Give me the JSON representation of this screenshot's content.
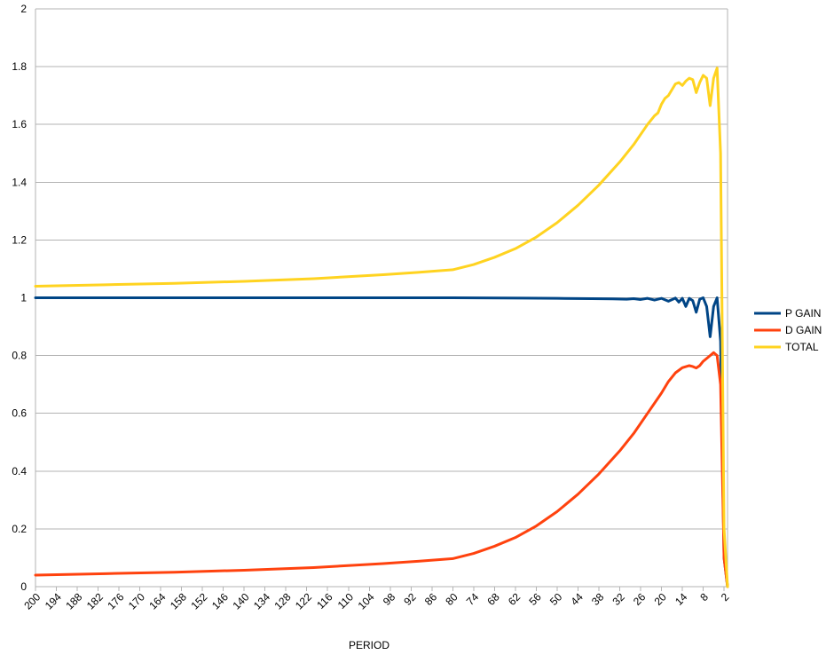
{
  "chart_data": {
    "type": "line",
    "title": "",
    "xlabel": "PERIOD",
    "ylabel": "",
    "ylim": [
      0,
      2
    ],
    "yticks": [
      0,
      0.2,
      0.4,
      0.6,
      0.8,
      1,
      1.2,
      1.4,
      1.6,
      1.8,
      2
    ],
    "ytick_labels": [
      "0",
      "0.2",
      "0.4",
      "0.6",
      "0.8",
      "1",
      "1.2",
      "1.4",
      "1.6",
      "1.8",
      "2"
    ],
    "x_range": [
      200,
      1
    ],
    "x_reversed": true,
    "xtick_labels": [
      "200",
      "194",
      "188",
      "182",
      "176",
      "170",
      "164",
      "158",
      "152",
      "146",
      "140",
      "134",
      "128",
      "122",
      "116",
      "110",
      "104",
      "98",
      "92",
      "86",
      "80",
      "74",
      "68",
      "62",
      "56",
      "50",
      "44",
      "38",
      "32",
      "26",
      "20",
      "14",
      "8",
      "2"
    ],
    "grid": "horizontal",
    "legend": "right",
    "series": [
      {
        "name": "P GAIN",
        "color": "#004586",
        "points": [
          [
            200,
            1.0
          ],
          [
            120,
            1.0
          ],
          [
            80,
            1.0
          ],
          [
            60,
            0.999
          ],
          [
            50,
            0.998
          ],
          [
            40,
            0.997
          ],
          [
            34,
            0.996
          ],
          [
            30,
            0.995
          ],
          [
            28,
            0.997
          ],
          [
            26,
            0.994
          ],
          [
            24,
            0.998
          ],
          [
            22,
            0.992
          ],
          [
            20,
            0.998
          ],
          [
            18,
            0.988
          ],
          [
            16,
            0.999
          ],
          [
            15,
            0.985
          ],
          [
            14,
            0.998
          ],
          [
            13,
            0.97
          ],
          [
            12,
            0.998
          ],
          [
            11,
            0.99
          ],
          [
            10,
            0.95
          ],
          [
            9,
            0.995
          ],
          [
            8,
            1.0
          ],
          [
            7,
            0.97
          ],
          [
            6,
            0.865
          ],
          [
            5,
            0.97
          ],
          [
            4,
            1.0
          ],
          [
            3,
            0.85
          ],
          [
            2,
            0.1
          ],
          [
            1,
            0.0
          ]
        ]
      },
      {
        "name": "D GAIN",
        "color": "#ff420e",
        "points": [
          [
            200,
            0.04
          ],
          [
            180,
            0.045
          ],
          [
            160,
            0.05
          ],
          [
            140,
            0.057
          ],
          [
            120,
            0.066
          ],
          [
            100,
            0.08
          ],
          [
            90,
            0.088
          ],
          [
            80,
            0.097
          ],
          [
            74,
            0.115
          ],
          [
            68,
            0.14
          ],
          [
            62,
            0.17
          ],
          [
            56,
            0.21
          ],
          [
            50,
            0.26
          ],
          [
            44,
            0.32
          ],
          [
            38,
            0.39
          ],
          [
            32,
            0.47
          ],
          [
            28,
            0.53
          ],
          [
            24,
            0.6
          ],
          [
            20,
            0.67
          ],
          [
            18,
            0.71
          ],
          [
            16,
            0.74
          ],
          [
            14,
            0.758
          ],
          [
            12,
            0.765
          ],
          [
            11,
            0.762
          ],
          [
            10,
            0.757
          ],
          [
            9,
            0.765
          ],
          [
            8,
            0.78
          ],
          [
            6,
            0.8
          ],
          [
            5,
            0.81
          ],
          [
            4,
            0.8
          ],
          [
            3,
            0.7
          ],
          [
            2,
            0.1
          ],
          [
            1,
            0.0
          ]
        ]
      },
      {
        "name": "TOTAL",
        "color": "#ffd320",
        "points": [
          [
            200,
            1.04
          ],
          [
            180,
            1.045
          ],
          [
            160,
            1.05
          ],
          [
            140,
            1.057
          ],
          [
            120,
            1.066
          ],
          [
            100,
            1.08
          ],
          [
            90,
            1.088
          ],
          [
            80,
            1.097
          ],
          [
            74,
            1.115
          ],
          [
            68,
            1.14
          ],
          [
            62,
            1.17
          ],
          [
            56,
            1.21
          ],
          [
            50,
            1.26
          ],
          [
            44,
            1.32
          ],
          [
            38,
            1.39
          ],
          [
            32,
            1.47
          ],
          [
            28,
            1.53
          ],
          [
            24,
            1.6
          ],
          [
            22,
            1.63
          ],
          [
            21,
            1.64
          ],
          [
            20,
            1.67
          ],
          [
            19,
            1.69
          ],
          [
            18,
            1.7
          ],
          [
            17,
            1.72
          ],
          [
            16,
            1.74
          ],
          [
            15,
            1.745
          ],
          [
            14,
            1.735
          ],
          [
            13,
            1.75
          ],
          [
            12,
            1.76
          ],
          [
            11,
            1.755
          ],
          [
            10,
            1.71
          ],
          [
            9,
            1.745
          ],
          [
            8,
            1.77
          ],
          [
            7,
            1.76
          ],
          [
            6,
            1.665
          ],
          [
            5,
            1.76
          ],
          [
            4,
            1.795
          ],
          [
            3,
            1.5
          ],
          [
            2,
            0.2
          ],
          [
            1,
            0.0
          ]
        ]
      }
    ]
  }
}
